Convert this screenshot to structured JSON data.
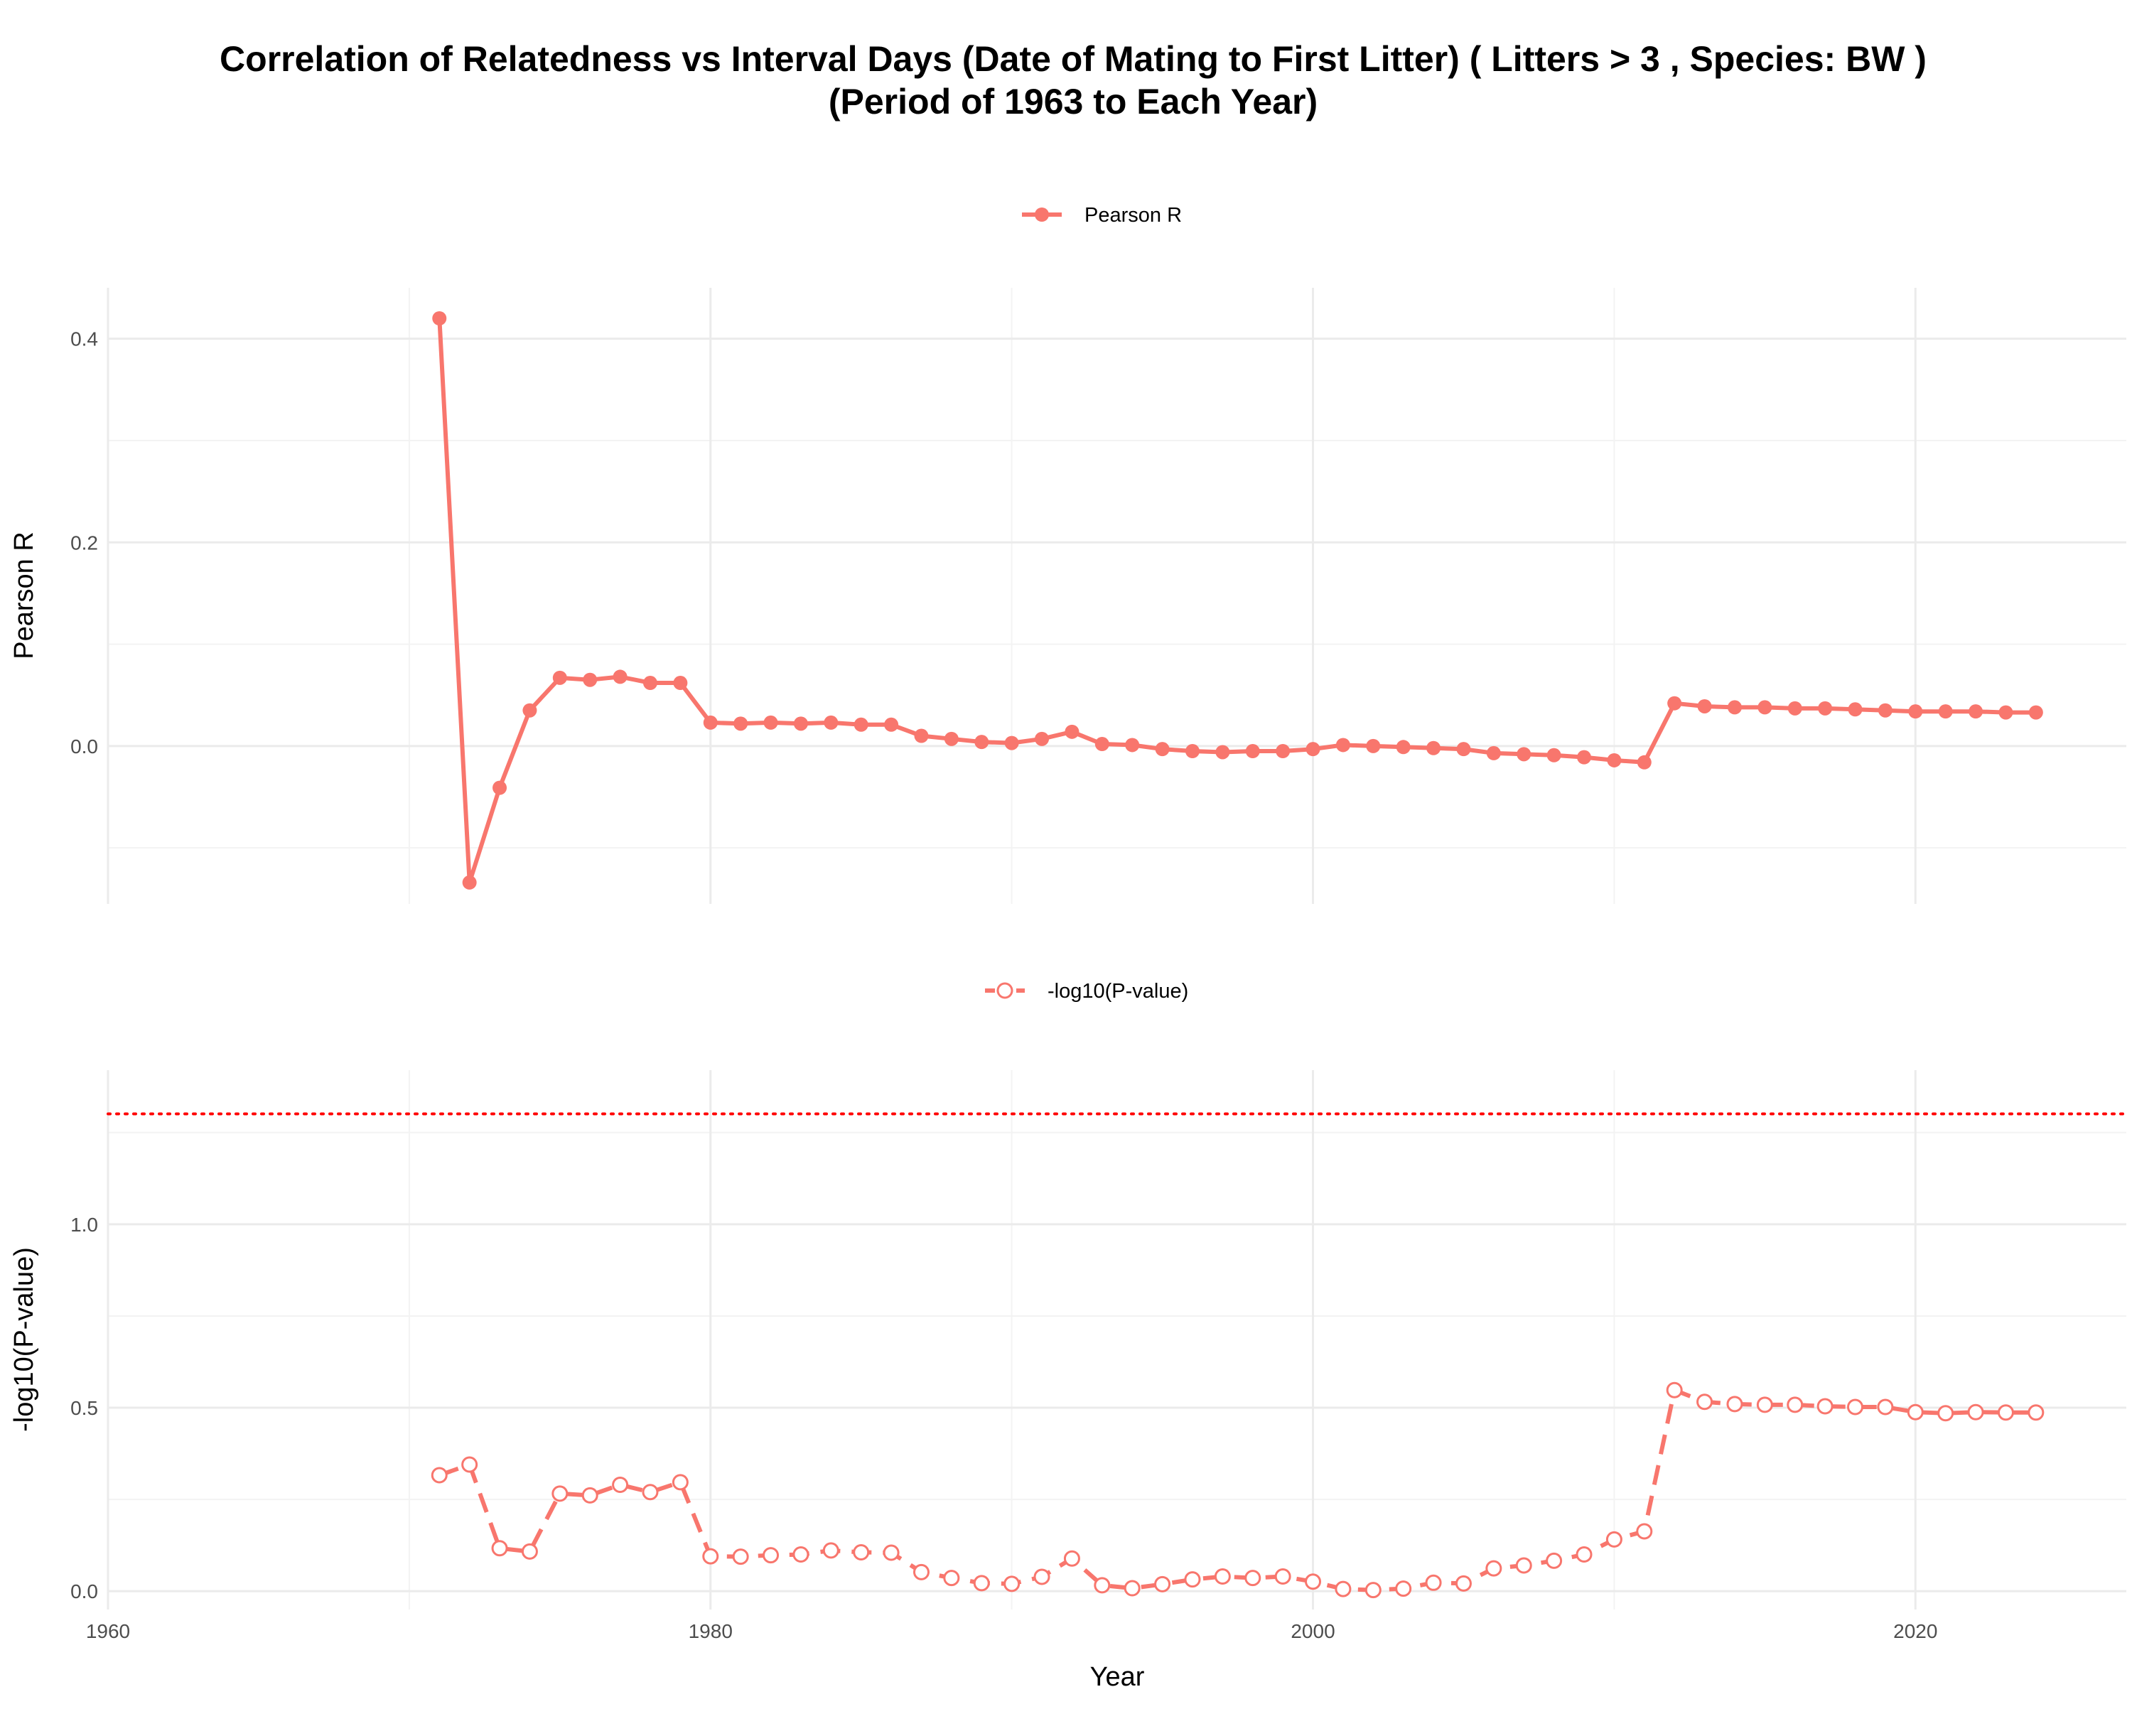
{
  "chart_data": {
    "type": "line",
    "title_lines": [
      "Correlation of Relatedness vs Interval Days (Date of Mating to First Litter) ( Litters > 3 , Species: BW )",
      "(Period of 1963 to Each Year)"
    ],
    "xlabel": "Year",
    "x_ticks": [
      1960,
      1980,
      2000,
      2020
    ],
    "xlim": [
      1960,
      2027
    ],
    "color": "#f8766d",
    "panels": [
      {
        "ylabel": "Pearson R",
        "legend": "Pearson R",
        "marker": "filled-circle",
        "line_style": "solid",
        "ylim": [
          -0.155,
          0.45
        ],
        "y_ticks": [
          0.0,
          0.2,
          0.4
        ],
        "y_tick_labels": [
          "0.0",
          "0.2",
          "0.4"
        ],
        "series": {
          "name": "Pearson R",
          "x": [
            1971,
            1972,
            1973,
            1974,
            1975,
            1976,
            1977,
            1978,
            1979,
            1980,
            1981,
            1982,
            1983,
            1984,
            1985,
            1986,
            1987,
            1988,
            1989,
            1990,
            1991,
            1992,
            1993,
            1994,
            1995,
            1996,
            1997,
            1998,
            1999,
            2000,
            2001,
            2002,
            2003,
            2004,
            2005,
            2006,
            2007,
            2008,
            2009,
            2010,
            2011,
            2012,
            2013,
            2014,
            2015,
            2016,
            2017,
            2018,
            2019,
            2020,
            2021,
            2022,
            2023,
            2024
          ],
          "y": [
            0.42,
            -0.134,
            -0.041,
            0.035,
            0.067,
            0.065,
            0.068,
            0.062,
            0.062,
            0.023,
            0.022,
            0.023,
            0.022,
            0.023,
            0.021,
            0.021,
            0.01,
            0.007,
            0.004,
            0.003,
            0.007,
            0.014,
            0.002,
            0.001,
            -0.003,
            -0.005,
            -0.006,
            -0.005,
            -0.005,
            -0.003,
            0.001,
            0.0,
            -0.001,
            -0.002,
            -0.003,
            -0.007,
            -0.008,
            -0.009,
            -0.011,
            -0.014,
            -0.016,
            0.042,
            0.039,
            0.038,
            0.038,
            0.037,
            0.037,
            0.036,
            0.035,
            0.034,
            0.034,
            0.034,
            0.033,
            0.033
          ]
        }
      },
      {
        "ylabel": "-log10(P-value)",
        "legend": "-log10(P-value)",
        "marker": "open-circle",
        "line_style": "dashed",
        "ylim": [
          -0.05,
          1.42
        ],
        "y_ticks": [
          0.0,
          0.5,
          1.0
        ],
        "y_tick_labels": [
          "0.0",
          "0.5",
          "1.0"
        ],
        "reference_line": {
          "y": 1.301,
          "style": "dotted",
          "color": "#ff0000"
        },
        "series": {
          "name": "-log10(P-value)",
          "x": [
            1971,
            1972,
            1973,
            1974,
            1975,
            1976,
            1977,
            1978,
            1979,
            1980,
            1981,
            1982,
            1983,
            1984,
            1985,
            1986,
            1987,
            1988,
            1989,
            1990,
            1991,
            1992,
            1993,
            1994,
            1995,
            1996,
            1997,
            1998,
            1999,
            2000,
            2001,
            2002,
            2003,
            2004,
            2005,
            2006,
            2007,
            2008,
            2009,
            2010,
            2011,
            2012,
            2013,
            2014,
            2015,
            2016,
            2017,
            2018,
            2019,
            2020,
            2021,
            2022,
            2023,
            2024
          ],
          "y": [
            0.316,
            0.345,
            0.117,
            0.108,
            0.266,
            0.261,
            0.29,
            0.27,
            0.297,
            0.095,
            0.094,
            0.098,
            0.1,
            0.111,
            0.106,
            0.105,
            0.052,
            0.036,
            0.022,
            0.02,
            0.039,
            0.089,
            0.016,
            0.008,
            0.019,
            0.032,
            0.04,
            0.036,
            0.04,
            0.026,
            0.006,
            0.003,
            0.007,
            0.023,
            0.021,
            0.062,
            0.07,
            0.083,
            0.1,
            0.141,
            0.163,
            0.548,
            0.516,
            0.51,
            0.508,
            0.508,
            0.504,
            0.502,
            0.502,
            0.488,
            0.485,
            0.488,
            0.487,
            0.487
          ]
        }
      }
    ]
  }
}
